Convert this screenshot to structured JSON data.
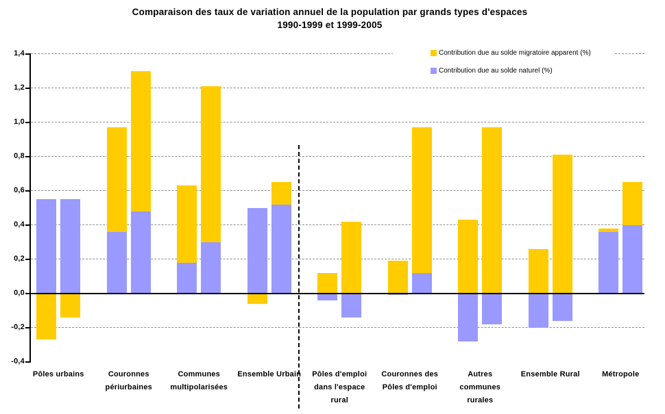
{
  "title": {
    "line1": "Comparaison des taux de variation annuel de la population par grands types d'espaces",
    "line2": "1990-1999 et 1999-2005"
  },
  "legend": {
    "items": [
      {
        "label": "Contribution due au solde migratoire apparent (%)",
        "color": "#FFCC00"
      },
      {
        "label": "Contribution due au solde naturel (%)",
        "color": "#9999FF"
      }
    ]
  },
  "chart_data": {
    "type": "bar",
    "stacked": true,
    "grid": "horizontal dashed every 0.2",
    "legend_position": "top-right",
    "ylim": [
      -0.4,
      1.4
    ],
    "ytick_values": [
      1.4,
      1.2,
      1.0,
      0.8,
      0.6,
      0.4,
      0.2,
      0.0,
      -0.2,
      -0.4
    ],
    "ytick_labels": [
      "1,4",
      "1,2",
      "1,0",
      "0,8",
      "0,6",
      "0,4",
      "0,2",
      "0,0",
      "-0,2",
      "-0,4"
    ],
    "gridline_values": [
      1.4,
      1.2,
      1.0,
      0.8,
      0.6,
      0.4,
      0.2,
      -0.2
    ],
    "categories": [
      "Pôles urbains",
      "Couronnes périurbaines",
      "Communes multipolarisées",
      "Ensemble Urbain",
      "Pôles d'emploi dans l'espace rural",
      "Couronnes des Pôles d'emploi",
      "Autres communes rurales",
      "Ensemble Rural",
      "Métropole"
    ],
    "category_label_lines": [
      [
        "Pôles urbains"
      ],
      [
        "Couronnes",
        "périurbaines"
      ],
      [
        "Communes",
        "multipolarisées"
      ],
      [
        "Ensemble Urbain"
      ],
      [
        "Pôles d'emploi",
        "dans l'espace",
        "rural"
      ],
      [
        "Couronnes des",
        "Pôles d'emploi"
      ],
      [
        "Autres",
        "communes",
        "rurales"
      ],
      [
        "Ensemble Rural"
      ],
      [
        "Métropole"
      ]
    ],
    "separator_after_category_index": 3,
    "colors": {
      "solde_migratoire": "#FFCC00",
      "solde_naturel": "#9999FF"
    },
    "series": [
      {
        "period": "1990-1999",
        "solde_naturel": [
          0.55,
          0.36,
          0.18,
          0.5,
          -0.04,
          -0.01,
          -0.28,
          -0.2,
          0.36
        ],
        "solde_migratoire": [
          -0.27,
          0.61,
          0.45,
          -0.06,
          0.12,
          0.19,
          0.43,
          0.26,
          0.02
        ]
      },
      {
        "period": "1999-2005",
        "solde_naturel": [
          0.55,
          0.48,
          0.3,
          0.52,
          -0.14,
          0.12,
          -0.18,
          -0.16,
          0.4
        ],
        "solde_migratoire": [
          -0.14,
          0.82,
          0.91,
          0.13,
          0.42,
          0.85,
          0.97,
          0.81,
          0.25
        ]
      }
    ]
  }
}
